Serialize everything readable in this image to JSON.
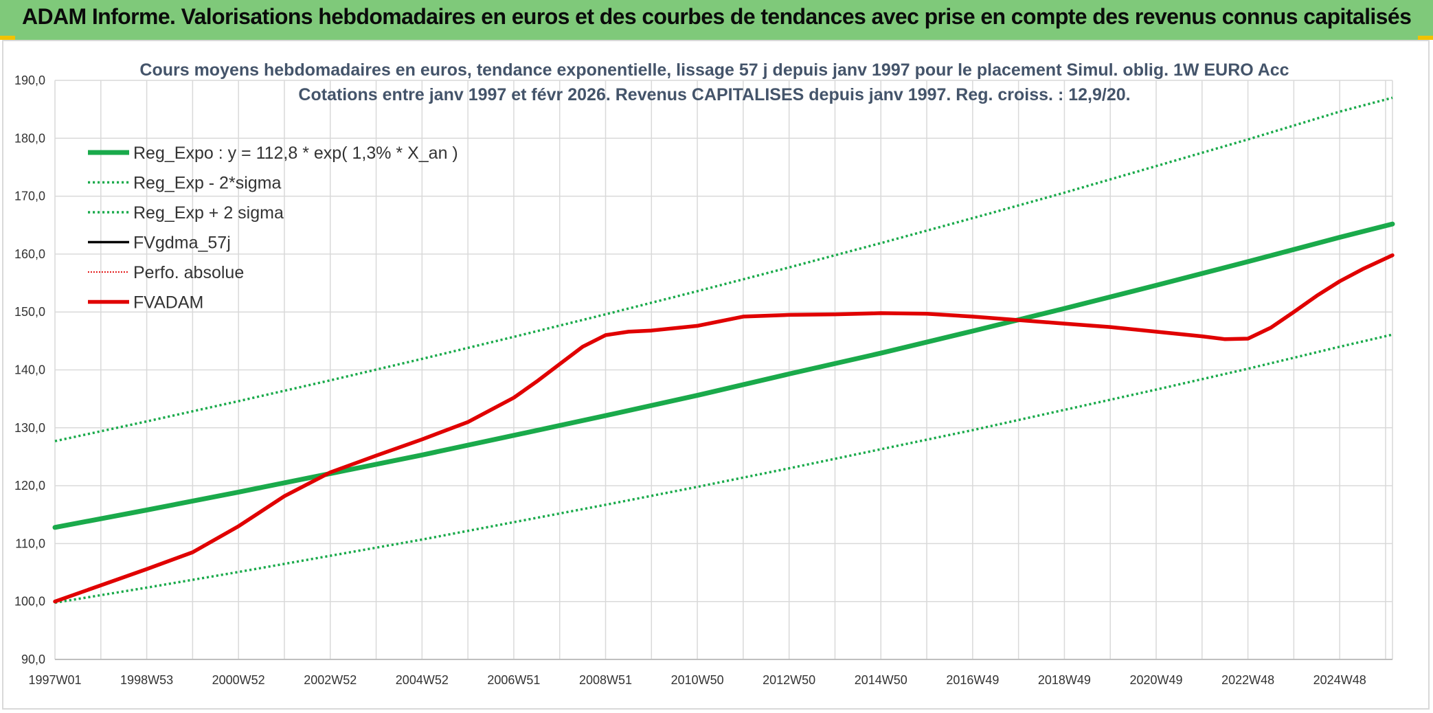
{
  "header": {
    "title": "ADAM Informe. Valorisations hebdomadaires en euros et des courbes de tendances avec prise en compte des revenus connus capitalisés"
  },
  "colors": {
    "header_bg": "#7fc97a",
    "corner": "#f2c200",
    "green": "#1aaa4b",
    "red": "#e00000",
    "black": "#000000",
    "grid": "#d9d9d9"
  },
  "chart_data": {
    "type": "line",
    "title": [
      "Cours moyens hebdomadaires en euros, tendance exponentielle, lissage 57 j depuis janv 1997 pour le placement Simul. oblig. 1W EURO Acc",
      "Cotations entre janv 1997 et févr 2026. Revenus CAPITALISES depuis janv 1997. Reg. croiss. : 12,9/20."
    ],
    "xlabel": "",
    "ylabel": "",
    "ylim": [
      90,
      190
    ],
    "xlim": [
      0,
      29.15
    ],
    "yticks": [
      "90,0",
      "100,0",
      "110,0",
      "120,0",
      "130,0",
      "140,0",
      "150,0",
      "160,0",
      "170,0",
      "180,0",
      "190,0"
    ],
    "xticks": [
      {
        "label": "1997W01",
        "x": 0
      },
      {
        "label": "1998W53",
        "x": 2
      },
      {
        "label": "2000W52",
        "x": 4
      },
      {
        "label": "2002W52",
        "x": 6
      },
      {
        "label": "2004W52",
        "x": 8
      },
      {
        "label": "2006W51",
        "x": 10
      },
      {
        "label": "2008W51",
        "x": 12
      },
      {
        "label": "2010W50",
        "x": 14
      },
      {
        "label": "2012W50",
        "x": 16
      },
      {
        "label": "2014W50",
        "x": 18
      },
      {
        "label": "2016W49",
        "x": 20
      },
      {
        "label": "2018W49",
        "x": 22
      },
      {
        "label": "2020W49",
        "x": 24
      },
      {
        "label": "2022W48",
        "x": 26
      },
      {
        "label": "2024W48",
        "x": 28
      }
    ],
    "series": [
      {
        "name": "Reg_Expo : y = 112,8 * exp( 1,3% *  X_an )",
        "style": "solid",
        "color": "#1aaa4b",
        "width": 7,
        "x": [
          0,
          2,
          4,
          6,
          8,
          10,
          12,
          14,
          16,
          18,
          20,
          22,
          24,
          26,
          28,
          29.15
        ],
        "y": [
          112.8,
          115.8,
          118.9,
          122.1,
          125.3,
          128.7,
          132.1,
          135.6,
          139.3,
          142.9,
          146.7,
          150.6,
          154.6,
          158.7,
          162.9,
          165.2
        ]
      },
      {
        "name": "Reg_Exp - 2*sigma",
        "style": "dotted",
        "color": "#1aaa4b",
        "width": 3.5,
        "x": [
          0,
          2,
          4,
          6,
          8,
          10,
          12,
          14,
          16,
          18,
          20,
          22,
          24,
          26,
          28,
          29.15
        ],
        "y": [
          99.8,
          102.4,
          105.1,
          107.9,
          110.7,
          113.7,
          116.7,
          119.8,
          123.0,
          126.3,
          129.6,
          133.1,
          136.6,
          140.2,
          144.0,
          146.1
        ]
      },
      {
        "name": "Reg_Exp + 2 sigma",
        "style": "dotted",
        "color": "#1aaa4b",
        "width": 3.5,
        "x": [
          0,
          2,
          4,
          6,
          8,
          10,
          12,
          14,
          16,
          18,
          20,
          22,
          24,
          26,
          28,
          29.15
        ],
        "y": [
          127.7,
          131.1,
          134.6,
          138.2,
          141.9,
          145.7,
          149.6,
          153.6,
          157.7,
          161.9,
          166.2,
          170.6,
          175.2,
          179.8,
          184.6,
          187.0
        ]
      },
      {
        "name": "FVgdma_57j",
        "style": "solid",
        "color": "#000000",
        "width": 3.5,
        "x": [],
        "y": []
      },
      {
        "name": "Perfo. absolue",
        "style": "dotted",
        "color": "#e00000",
        "width": 2,
        "x": [],
        "y": []
      },
      {
        "name": "FVADAM",
        "style": "solid",
        "color": "#e00000",
        "width": 5.5,
        "x": [
          0,
          1,
          2,
          3,
          4,
          5,
          6,
          7,
          8,
          9,
          10,
          10.5,
          11,
          11.5,
          12,
          12.5,
          13,
          14,
          15,
          16,
          17,
          18,
          19,
          20,
          21,
          22,
          23,
          24,
          25,
          25.5,
          26,
          26.5,
          27,
          27.5,
          28,
          28.5,
          29.15
        ],
        "y": [
          100.0,
          102.8,
          105.6,
          108.5,
          113.0,
          118.2,
          122.3,
          125.2,
          128.0,
          131.0,
          135.2,
          138.0,
          141.0,
          144.0,
          146.0,
          146.6,
          146.8,
          147.6,
          149.2,
          149.5,
          149.6,
          149.8,
          149.7,
          149.2,
          148.6,
          148.0,
          147.4,
          146.6,
          145.8,
          145.3,
          145.4,
          147.3,
          150.0,
          152.8,
          155.3,
          157.4,
          159.8
        ]
      }
    ],
    "legend_position": "top-left"
  }
}
